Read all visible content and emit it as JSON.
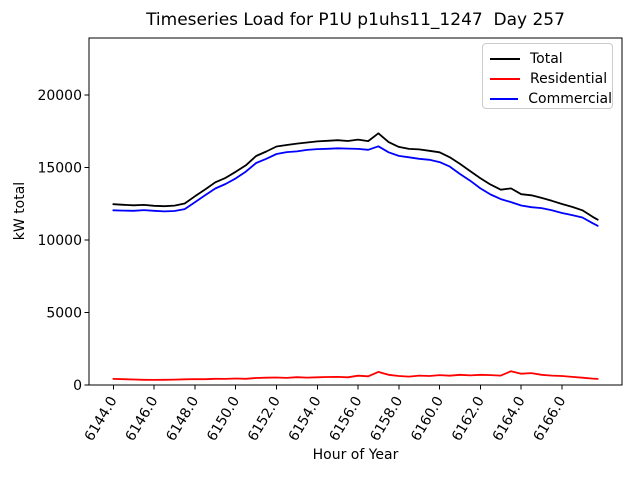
{
  "chart_data": {
    "type": "line",
    "title": "Timeseries Load for P1U p1uhs11_1247  Day 257",
    "xlabel": "Hour of Year",
    "ylabel": "kW total",
    "grid": false,
    "legend": {
      "position": "upper right"
    },
    "xlim": [
      6142.81,
      6168.94
    ],
    "ylim": [
      0,
      23930
    ],
    "xticks": {
      "values": [
        6144,
        6146,
        6148,
        6150,
        6152,
        6154,
        6156,
        6158,
        6160,
        6162,
        6164,
        6166
      ],
      "labels": [
        "6144.0",
        "6146.0",
        "6148.0",
        "6150.0",
        "6152.0",
        "6154.0",
        "6156.0",
        "6158.0",
        "6160.0",
        "6162.0",
        "6164.0",
        "6166.0"
      ],
      "rotation_deg": 59
    },
    "yticks": {
      "values": [
        0,
        5000,
        10000,
        15000,
        20000
      ],
      "labels": [
        "0",
        "5000",
        "10000",
        "15000",
        "20000"
      ]
    },
    "x": [
      6144.0,
      6144.5,
      6145.0,
      6145.5,
      6146.0,
      6146.5,
      6147.0,
      6147.5,
      6148.0,
      6148.5,
      6149.0,
      6149.5,
      6150.0,
      6150.5,
      6151.0,
      6151.5,
      6152.0,
      6152.5,
      6153.0,
      6153.5,
      6154.0,
      6154.5,
      6155.0,
      6155.5,
      6156.0,
      6156.5,
      6157.0,
      6157.5,
      6158.0,
      6158.5,
      6159.0,
      6159.5,
      6160.0,
      6160.5,
      6161.0,
      6161.5,
      6162.0,
      6162.5,
      6163.0,
      6163.5,
      6164.0,
      6164.5,
      6165.0,
      6165.5,
      6166.0,
      6166.5,
      6167.0,
      6167.5,
      6167.75
    ],
    "series": [
      {
        "name": "Total",
        "color": "#000000",
        "values": [
          12470,
          12430,
          12390,
          12420,
          12360,
          12330,
          12370,
          12520,
          13010,
          13480,
          13980,
          14280,
          14700,
          15150,
          15790,
          16100,
          16450,
          16550,
          16650,
          16720,
          16800,
          16840,
          16880,
          16830,
          16920,
          16820,
          17360,
          16750,
          16420,
          16280,
          16250,
          16150,
          16050,
          15700,
          15250,
          14750,
          14260,
          13820,
          13470,
          13560,
          13160,
          13080,
          12900,
          12700,
          12480,
          12280,
          12050,
          11600,
          11400
        ]
      },
      {
        "name": "Residential",
        "color": "#ff0000",
        "values": [
          420,
          400,
          380,
          360,
          350,
          360,
          370,
          390,
          410,
          400,
          430,
          420,
          450,
          430,
          480,
          500,
          520,
          490,
          540,
          510,
          530,
          550,
          560,
          530,
          640,
          600,
          900,
          700,
          620,
          580,
          650,
          620,
          680,
          640,
          700,
          660,
          700,
          680,
          650,
          950,
          780,
          820,
          700,
          650,
          620,
          560,
          500,
          440,
          420
        ]
      },
      {
        "name": "Commercial",
        "color": "#0000ff",
        "values": [
          12050,
          12030,
          12010,
          12060,
          12010,
          11970,
          12000,
          12130,
          12600,
          13080,
          13550,
          13860,
          14250,
          14720,
          15310,
          15600,
          15930,
          16060,
          16110,
          16210,
          16270,
          16290,
          16320,
          16300,
          16280,
          16220,
          16460,
          16050,
          15800,
          15700,
          15600,
          15530,
          15370,
          15060,
          14550,
          14090,
          13560,
          13140,
          12820,
          12610,
          12380,
          12260,
          12200,
          12050,
          11860,
          11720,
          11550,
          11160,
          10980
        ]
      }
    ]
  }
}
